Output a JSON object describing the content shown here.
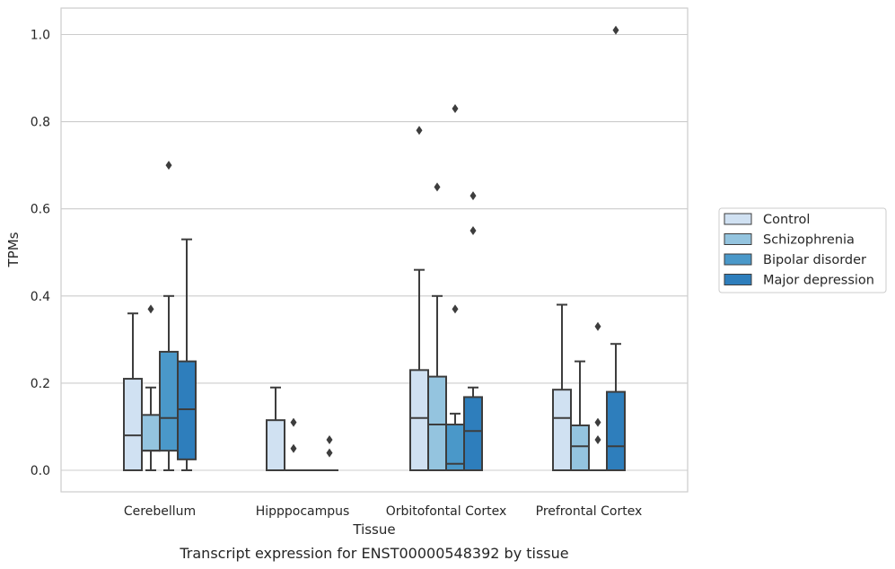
{
  "chart_data": {
    "type": "box",
    "xlabel": "Tissue",
    "ylabel": "TPMs",
    "caption": "Transcript expression for ENST00000548392 by tissue",
    "ylim": [
      -0.05,
      1.06
    ],
    "yticks": [
      0.0,
      0.2,
      0.4,
      0.6,
      0.8,
      1.0
    ],
    "ytick_labels": [
      "0.0",
      "0.2",
      "0.4",
      "0.6",
      "0.8",
      "1.0"
    ],
    "grid": "horizontal",
    "legend_position": "right",
    "categories": [
      "Cerebellum",
      "Hipppocampus",
      "Orbitofontal Cortex",
      "Prefrontal Cortex"
    ],
    "series": [
      {
        "name": "Control",
        "color": "#d0e1f2",
        "boxes": [
          {
            "min": 0.0,
            "q1": 0.0,
            "median": 0.08,
            "q3": 0.21,
            "max": 0.36,
            "outliers": []
          },
          {
            "min": 0.0,
            "q1": 0.0,
            "median": 0.0,
            "q3": 0.115,
            "max": 0.19,
            "outliers": []
          },
          {
            "min": 0.0,
            "q1": 0.0,
            "median": 0.12,
            "q3": 0.23,
            "max": 0.46,
            "outliers": [
              0.78
            ]
          },
          {
            "min": 0.0,
            "q1": 0.0,
            "median": 0.12,
            "q3": 0.185,
            "max": 0.38,
            "outliers": []
          }
        ]
      },
      {
        "name": "Schizophrenia",
        "color": "#94c4df",
        "boxes": [
          {
            "min": 0.0,
            "q1": 0.045,
            "median": 0.045,
            "q3": 0.127,
            "max": 0.19,
            "outliers": [
              0.37
            ]
          },
          {
            "min": 0.0,
            "q1": 0.0,
            "median": 0.0,
            "q3": 0.0,
            "max": 0.0,
            "outliers": [
              0.05,
              0.11
            ]
          },
          {
            "min": 0.0,
            "q1": 0.0,
            "median": 0.105,
            "q3": 0.215,
            "max": 0.4,
            "outliers": [
              0.65
            ]
          },
          {
            "min": 0.0,
            "q1": 0.0,
            "median": 0.055,
            "q3": 0.103,
            "max": 0.25,
            "outliers": []
          }
        ]
      },
      {
        "name": "Bipolar disorder",
        "color": "#4a98c9",
        "boxes": [
          {
            "min": 0.0,
            "q1": 0.045,
            "median": 0.12,
            "q3": 0.272,
            "max": 0.4,
            "outliers": [
              0.7
            ]
          },
          {
            "min": 0.0,
            "q1": 0.0,
            "median": 0.0,
            "q3": 0.0,
            "max": 0.0,
            "outliers": []
          },
          {
            "min": 0.0,
            "q1": 0.0,
            "median": 0.015,
            "q3": 0.105,
            "max": 0.13,
            "outliers": [
              0.37,
              0.83
            ]
          },
          {
            "min": 0.0,
            "q1": 0.0,
            "median": 0.0,
            "q3": 0.0,
            "max": 0.0,
            "outliers": [
              0.07,
              0.11,
              0.33
            ]
          }
        ]
      },
      {
        "name": "Major depression",
        "color": "#2e7ebc",
        "boxes": [
          {
            "min": 0.0,
            "q1": 0.025,
            "median": 0.14,
            "q3": 0.25,
            "max": 0.53,
            "outliers": []
          },
          {
            "min": 0.0,
            "q1": 0.0,
            "median": 0.0,
            "q3": 0.0,
            "max": 0.0,
            "outliers": [
              0.04,
              0.07
            ]
          },
          {
            "min": 0.0,
            "q1": 0.0,
            "median": 0.09,
            "q3": 0.168,
            "max": 0.19,
            "outliers": [
              0.55,
              0.63
            ]
          },
          {
            "min": 0.0,
            "q1": 0.0,
            "median": 0.055,
            "q3": 0.18,
            "max": 0.29,
            "outliers": [
              1.01
            ]
          }
        ]
      }
    ]
  }
}
